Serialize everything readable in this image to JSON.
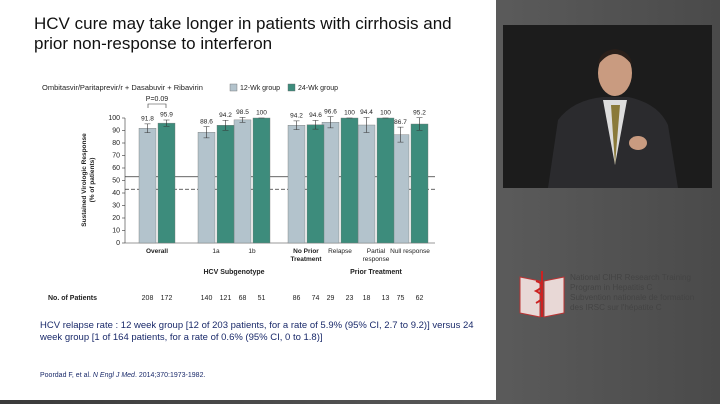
{
  "chart_data": {
    "type": "bar",
    "title": "HCV cure may take longer in patients with cirrhosis and prior non-response to interferon",
    "subtitle": "Ombitasvir/Paritaprevir/r + Dasabuvir + Ribavirin",
    "ylabel": [
      "Sustained Virologic Response",
      "(% of patients)"
    ],
    "categories": [
      "Overall",
      "1a",
      "1b",
      "No Prior Treatment",
      "Relapse",
      "Partial response",
      "Null response"
    ],
    "group_labels": [
      "HCV Subgenotype",
      "Prior Treatment"
    ],
    "series": [
      {
        "name": "12-Wk group",
        "color": "#b3c3cc",
        "values": [
          91.8,
          88.6,
          98.5,
          94.2,
          96.6,
          94.4,
          86.7
        ],
        "errors": [
          3.5,
          4.5,
          2,
          3.5,
          4.5,
          6,
          6
        ],
        "patients": [
          208,
          140,
          68,
          86,
          29,
          18,
          75
        ]
      },
      {
        "name": "24-Wk group",
        "color": "#3d8c7c",
        "values": [
          95.9,
          94.2,
          100,
          94.6,
          100,
          100,
          95.2
        ],
        "errors": [
          2.5,
          4,
          0,
          3.5,
          0,
          0,
          5
        ],
        "patients": [
          172,
          121,
          51,
          74,
          23,
          13,
          62
        ]
      }
    ],
    "annotation": "P=0.09",
    "reference_lines": [
      {
        "value": 53,
        "style": "solid"
      },
      {
        "value": 43,
        "style": "dashed"
      }
    ],
    "patients_label": "No. of Patients",
    "ylim": [
      0,
      100
    ],
    "yticks": [
      0,
      10,
      20,
      30,
      40,
      50,
      60,
      70,
      80,
      90,
      100
    ]
  },
  "slide": {
    "note": "HCV relapse rate :  12 week group  [12 of 203 patients, for a rate of 5.9% (95% CI, 2.7 to 9.2)] versus 24 week group [1 of 164 patients, for a rate of 0.6% (95% CI, 0 to 1.8)]",
    "citation": [
      "Poordad F, et al. ",
      "N Engl J Med",
      ". 2014;370:1973-1982."
    ]
  },
  "logo": {
    "lines": [
      "National CIHR Research Training",
      "Program in Hepatitis C",
      "Subvention nationale de formation",
      "des IRSC sur l'hépatite C"
    ]
  }
}
